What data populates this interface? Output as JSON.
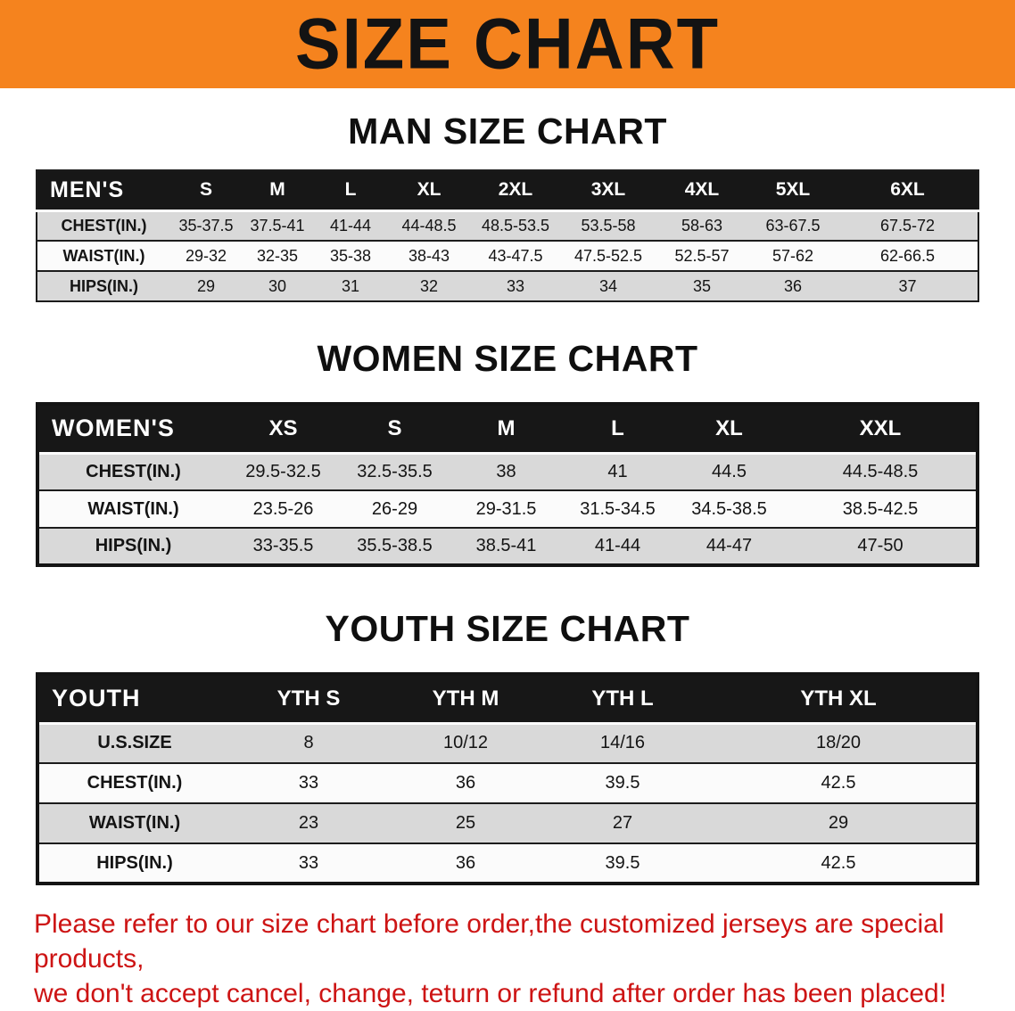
{
  "banner": {
    "title": "SIZE CHART",
    "bg_color": "#f5831e"
  },
  "colors": {
    "header_bg": "#171717",
    "row_shade": "#d9d9d9",
    "row_plain": "#fbfbfb",
    "disclaimer_text": "#cd1414"
  },
  "men": {
    "heading": "MAN SIZE CHART",
    "label": "MEN'S",
    "sizes": [
      "S",
      "M",
      "L",
      "XL",
      "2XL",
      "3XL",
      "4XL",
      "5XL",
      "6XL"
    ],
    "rows": [
      {
        "label": "CHEST(IN.)",
        "values": [
          "35-37.5",
          "37.5-41",
          "41-44",
          "44-48.5",
          "48.5-53.5",
          "53.5-58",
          "58-63",
          "63-67.5",
          "67.5-72"
        ]
      },
      {
        "label": "WAIST(IN.)",
        "values": [
          "29-32",
          "32-35",
          "35-38",
          "38-43",
          "43-47.5",
          "47.5-52.5",
          "52.5-57",
          "57-62",
          "62-66.5"
        ]
      },
      {
        "label": "HIPS(IN.)",
        "values": [
          "29",
          "30",
          "31",
          "32",
          "33",
          "34",
          "35",
          "36",
          "37"
        ]
      }
    ]
  },
  "women": {
    "heading": "WOMEN SIZE CHART",
    "label": "WOMEN'S",
    "sizes": [
      "XS",
      "S",
      "M",
      "L",
      "XL",
      "XXL"
    ],
    "rows": [
      {
        "label": "CHEST(IN.)",
        "values": [
          "29.5-32.5",
          "32.5-35.5",
          "38",
          "41",
          "44.5",
          "44.5-48.5"
        ]
      },
      {
        "label": "WAIST(IN.)",
        "values": [
          "23.5-26",
          "26-29",
          "29-31.5",
          "31.5-34.5",
          "34.5-38.5",
          "38.5-42.5"
        ]
      },
      {
        "label": "HIPS(IN.)",
        "values": [
          "33-35.5",
          "35.5-38.5",
          "38.5-41",
          "41-44",
          "44-47",
          "47-50"
        ]
      }
    ]
  },
  "youth": {
    "heading": "YOUTH SIZE CHART",
    "label": "YOUTH",
    "sizes": [
      "YTH S",
      "YTH M",
      "YTH L",
      "YTH XL"
    ],
    "rows": [
      {
        "label": "U.S.SIZE",
        "values": [
          "8",
          "10/12",
          "14/16",
          "18/20"
        ]
      },
      {
        "label": "CHEST(IN.)",
        "values": [
          "33",
          "36",
          "39.5",
          "42.5"
        ]
      },
      {
        "label": "WAIST(IN.)",
        "values": [
          "23",
          "25",
          "27",
          "29"
        ]
      },
      {
        "label": "HIPS(IN.)",
        "values": [
          "33",
          "36",
          "39.5",
          "42.5"
        ]
      }
    ]
  },
  "disclaimer": {
    "line1": "Please refer to our size chart before order,the customized jerseys are special products,",
    "line2": "we don't accept cancel, change, teturn or refund after order has been placed!"
  }
}
